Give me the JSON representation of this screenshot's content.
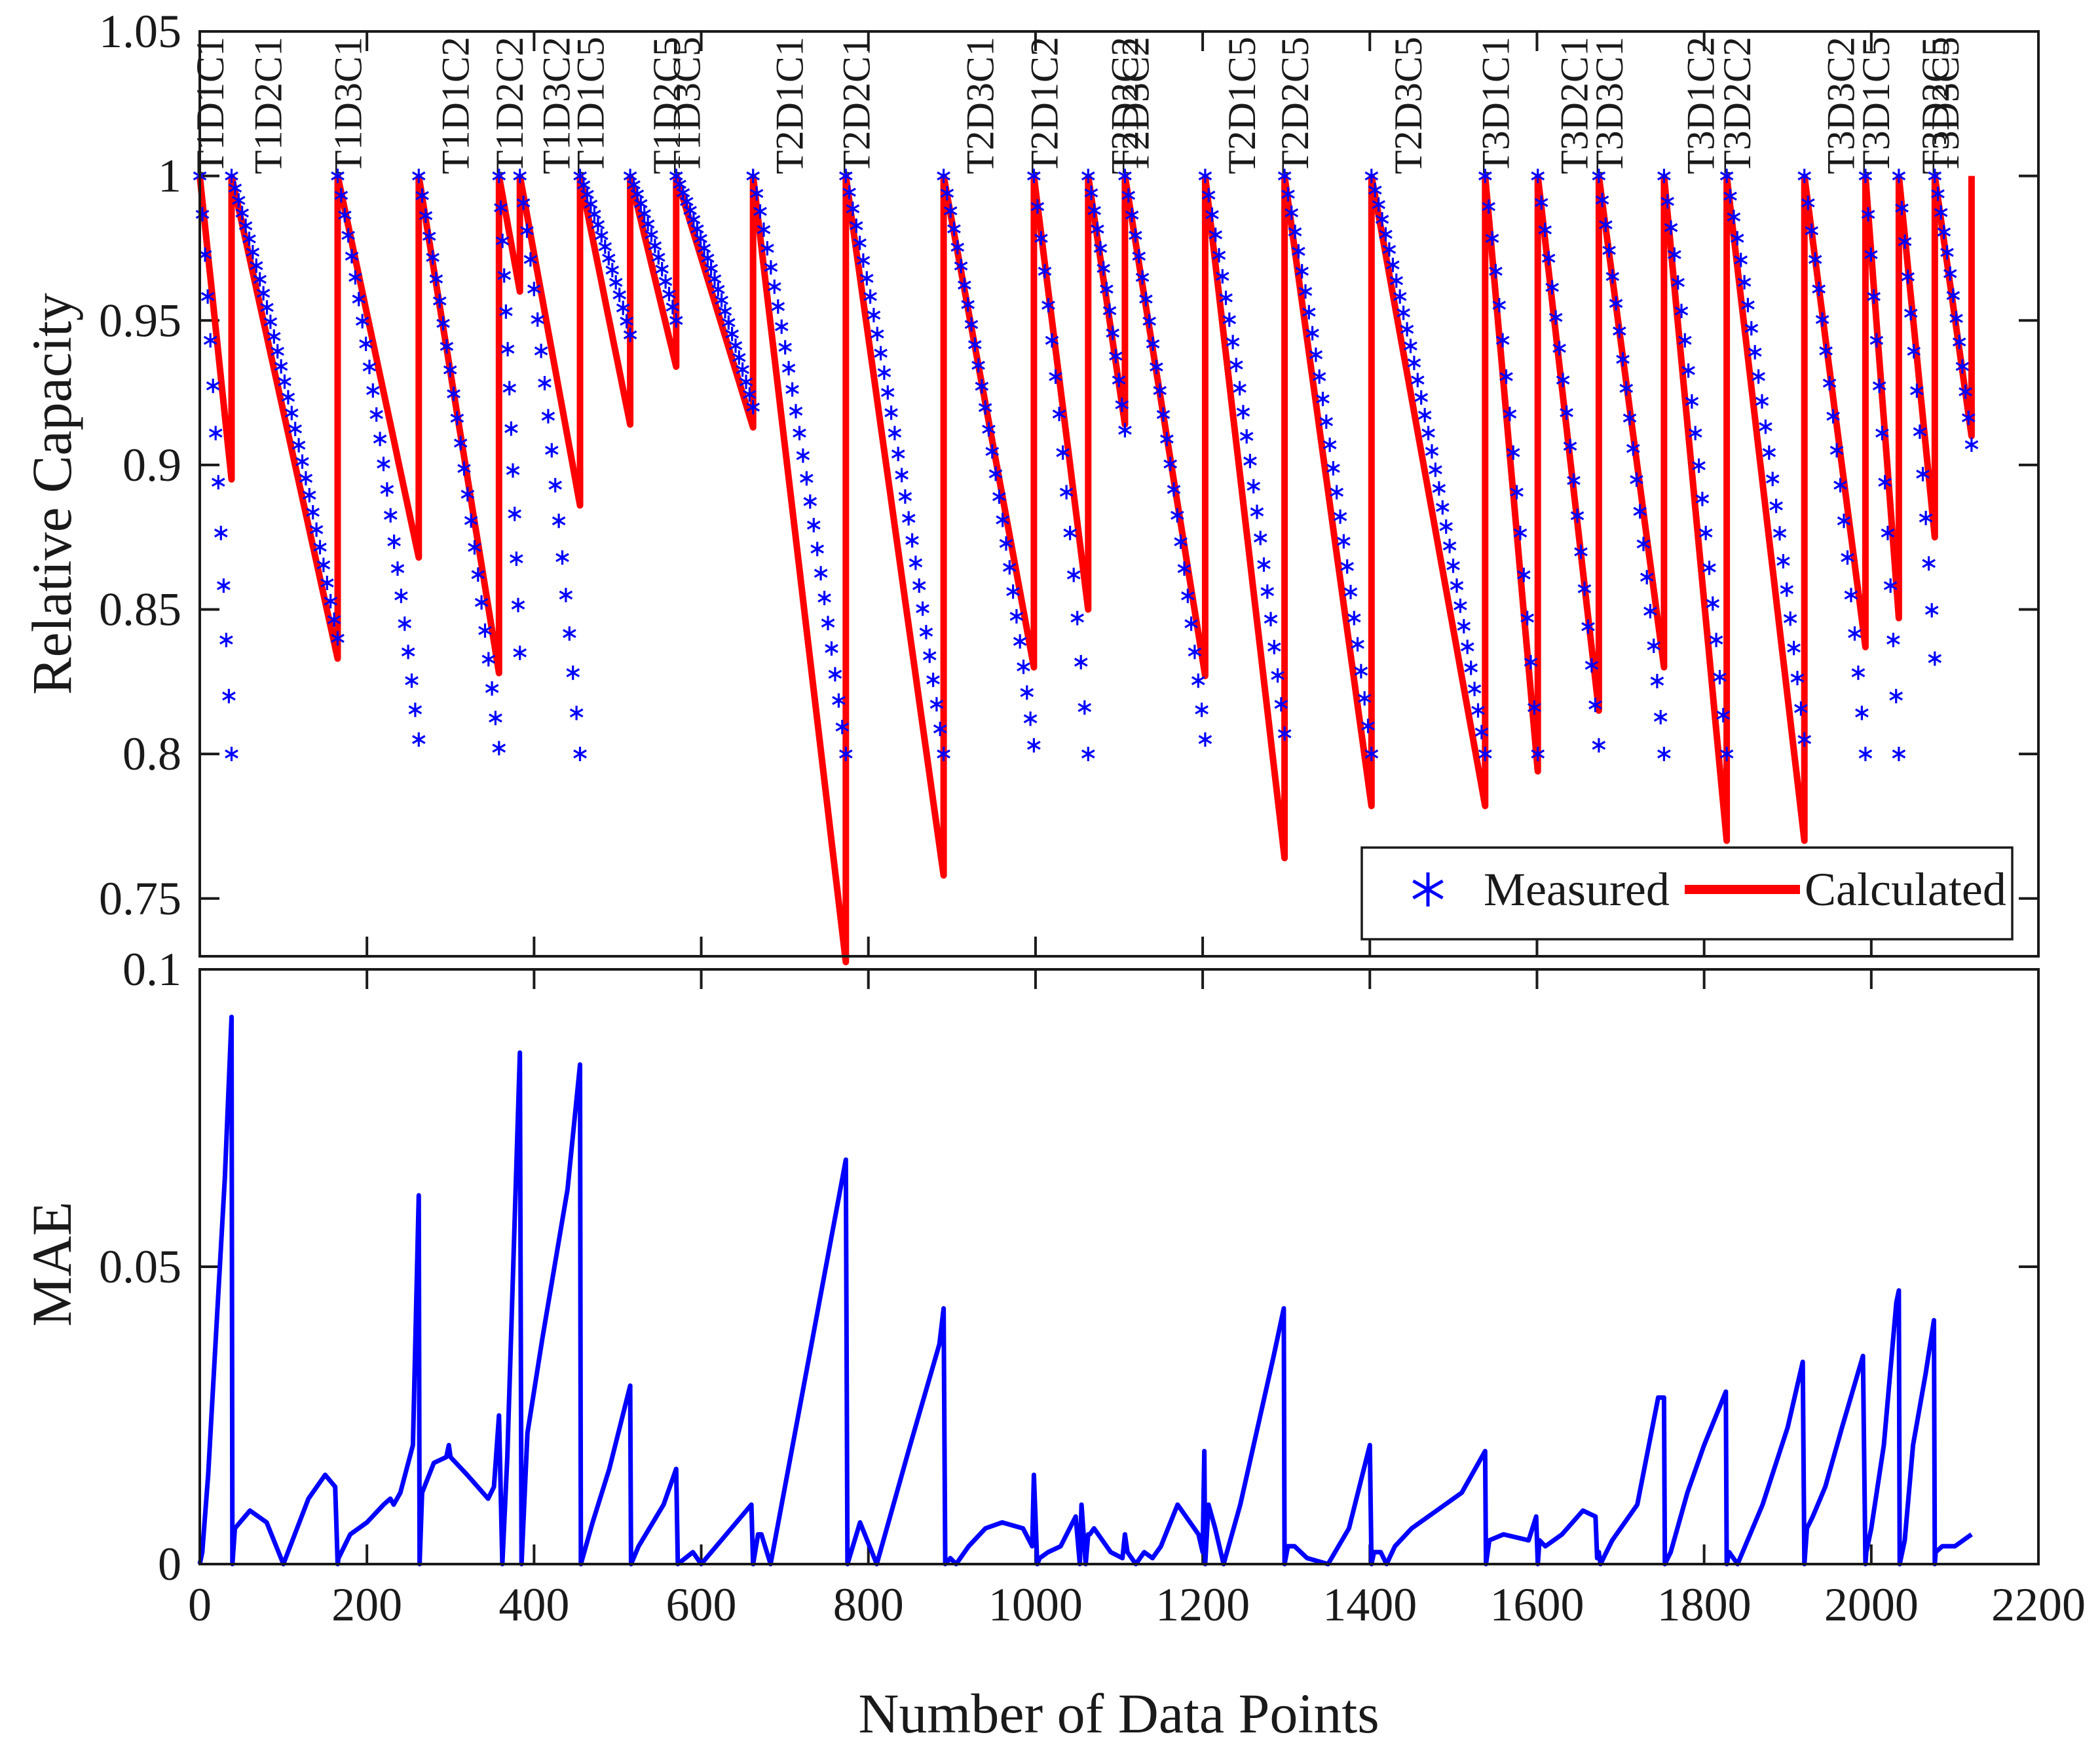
{
  "chart_data": [
    {
      "type": "line",
      "panel": "top",
      "ylabel": "Relative Capacity",
      "xlim": [
        0,
        2200
      ],
      "ylim": [
        0.73,
        1.05
      ],
      "yticks": [
        "1.05",
        "1",
        "0.95",
        "0.9",
        "0.85",
        "0.8",
        "0.75"
      ],
      "ytick_values": [
        1.05,
        1.0,
        0.95,
        0.9,
        0.85,
        0.8,
        0.75
      ],
      "legend": {
        "position": "bottom-right",
        "measured_label": "Measured",
        "calculated_label": "Calculated"
      },
      "colors": {
        "measured": "#0000ff",
        "calculated": "#ff0000"
      },
      "segments": [
        {
          "label": "T1D1C1",
          "start": 0,
          "end": 38,
          "meas_end": 0.8,
          "calc_end": 0.895
        },
        {
          "label": "T1D2C1",
          "start": 38,
          "end": 165,
          "meas_end": 0.84,
          "calc_end": 0.833
        },
        {
          "label": "T1D3C1",
          "start": 165,
          "end": 262,
          "meas_end": 0.805,
          "calc_end": 0.868
        },
        {
          "label": "T1D1C2",
          "start": 262,
          "end": 358,
          "meas_end": 0.802,
          "calc_end": 0.828
        },
        {
          "label": "T1D2C2",
          "start": 358,
          "end": 383,
          "meas_end": 0.835,
          "calc_end": 0.96
        },
        {
          "label": "T1D3C2",
          "start": 383,
          "end": 455,
          "meas_end": 0.8,
          "calc_end": 0.886
        },
        {
          "label": "T1D1C5",
          "start": 455,
          "end": 515,
          "meas_end": 0.945,
          "calc_end": 0.914
        },
        {
          "label": "T1D2C5",
          "start": 515,
          "end": 570,
          "meas_end": 0.95,
          "calc_end": 0.934
        },
        {
          "label": "T1D3C5",
          "start": 570,
          "end": 662,
          "meas_end": 0.92,
          "calc_end": 0.913
        },
        {
          "label": "T2D1C1",
          "start": 662,
          "end": 773,
          "meas_end": 0.8,
          "calc_end": 0.728
        },
        {
          "label": "T2D2C1",
          "start": 773,
          "end": 890,
          "meas_end": 0.8,
          "calc_end": 0.758
        },
        {
          "label": "T2D3C1",
          "start": 890,
          "end": 998,
          "meas_end": 0.803,
          "calc_end": 0.83
        },
        {
          "label": "T2D1C2",
          "start": 998,
          "end": 1063,
          "meas_end": 0.8,
          "calc_end": 0.85
        },
        {
          "label": "T2D2C2",
          "start": 1063,
          "end": 1107,
          "meas_end": 0.912,
          "calc_end": 0.914
        },
        {
          "label": "T2D3C2",
          "start": 1107,
          "end": 1203,
          "meas_end": 0.805,
          "calc_end": 0.827
        },
        {
          "label": "T2D1C5",
          "start": 1203,
          "end": 1298,
          "meas_end": 0.807,
          "calc_end": 0.764
        },
        {
          "label": "T2D2C5",
          "start": 1298,
          "end": 1402,
          "meas_end": 0.8,
          "calc_end": 0.782
        },
        {
          "label": "T2D3C5",
          "start": 1402,
          "end": 1538,
          "meas_end": 0.8,
          "calc_end": 0.782
        },
        {
          "label": "T3D1C1",
          "start": 1538,
          "end": 1601,
          "meas_end": 0.8,
          "calc_end": 0.794
        },
        {
          "label": "T3D2C1",
          "start": 1601,
          "end": 1674,
          "meas_end": 0.803,
          "calc_end": 0.815
        },
        {
          "label": "T3D3C1",
          "start": 1674,
          "end": 1752,
          "meas_end": 0.8,
          "calc_end": 0.83
        },
        {
          "label": "T3D1C2",
          "start": 1752,
          "end": 1827,
          "meas_end": 0.8,
          "calc_end": 0.77
        },
        {
          "label": "T3D2C2",
          "start": 1827,
          "end": 1920,
          "meas_end": 0.805,
          "calc_end": 0.77
        },
        {
          "label": "T3D3C2",
          "start": 1920,
          "end": 1993,
          "meas_end": 0.8,
          "calc_end": 0.837
        },
        {
          "label": "T3D1C5",
          "start": 1993,
          "end": 2033,
          "meas_end": 0.8,
          "calc_end": 0.847
        },
        {
          "label": "T3D2C5",
          "start": 2033,
          "end": 2076,
          "meas_end": 0.833,
          "calc_end": 0.875
        },
        {
          "label": "T3D3C5",
          "start": 2076,
          "end": 2120,
          "meas_end": 0.907,
          "calc_end": 0.91
        }
      ]
    },
    {
      "type": "line",
      "panel": "bottom",
      "xlabel": "Number of Data Points",
      "ylabel": "MAE",
      "xlim": [
        0,
        2200
      ],
      "ylim": [
        0,
        0.1
      ],
      "xticks": [
        "0",
        "200",
        "400",
        "600",
        "800",
        "1000",
        "1200",
        "1400",
        "1600",
        "1800",
        "2000",
        "2200"
      ],
      "xtick_values": [
        0,
        200,
        400,
        600,
        800,
        1000,
        1200,
        1400,
        1600,
        1800,
        2000,
        2200
      ],
      "yticks": [
        "0.1",
        "0.05",
        "0"
      ],
      "ytick_values": [
        0.1,
        0.05,
        0
      ],
      "color": "#0000ff",
      "x": [
        0,
        3,
        10,
        20,
        30,
        38,
        39,
        42,
        60,
        80,
        100,
        130,
        150,
        162,
        165,
        166,
        180,
        200,
        220,
        228,
        232,
        240,
        255,
        262,
        263,
        266,
        280,
        295,
        298,
        300,
        320,
        345,
        352,
        358,
        362,
        368,
        383,
        385,
        392,
        410,
        440,
        455,
        456,
        470,
        490,
        515,
        516,
        525,
        555,
        570,
        572,
        590,
        600,
        630,
        660,
        662,
        668,
        672,
        683,
        773,
        775,
        790,
        810,
        850,
        885,
        890,
        892,
        898,
        905,
        920,
        940,
        960,
        985,
        996,
        998,
        1002,
        1005,
        1015,
        1030,
        1048,
        1053,
        1055,
        1060,
        1063,
        1065,
        1070,
        1090,
        1104,
        1107,
        1110,
        1120,
        1130,
        1140,
        1150,
        1170,
        1195,
        1200,
        1202,
        1203,
        1207,
        1215,
        1225,
        1245,
        1285,
        1297,
        1298,
        1302,
        1310,
        1325,
        1350,
        1375,
        1400,
        1402,
        1405,
        1413,
        1420,
        1430,
        1450,
        1480,
        1510,
        1538,
        1539,
        1543,
        1560,
        1590,
        1599,
        1601,
        1603,
        1610,
        1630,
        1655,
        1670,
        1672,
        1674,
        1676,
        1690,
        1720,
        1745,
        1752,
        1753,
        1760,
        1780,
        1800,
        1826,
        1827,
        1830,
        1840,
        1870,
        1900,
        1918,
        1920,
        1923,
        1930,
        1945,
        1965,
        1990,
        1993,
        1994,
        2000,
        2015,
        2030,
        2033,
        2034,
        2040,
        2050,
        2065,
        2075,
        2076,
        2077,
        2085,
        2100,
        2110,
        2120
      ],
      "y": [
        0,
        0.002,
        0.015,
        0.04,
        0.065,
        0.092,
        0,
        0.006,
        0.009,
        0.007,
        0,
        0.011,
        0.015,
        0.013,
        0,
        0.001,
        0.005,
        0.007,
        0.01,
        0.011,
        0.01,
        0.012,
        0.02,
        0.062,
        0,
        0.012,
        0.017,
        0.018,
        0.02,
        0.018,
        0.015,
        0.011,
        0.013,
        0.025,
        0,
        0.018,
        0.086,
        0,
        0.022,
        0.038,
        0.063,
        0.084,
        0,
        0.007,
        0.016,
        0.03,
        0,
        0.003,
        0.01,
        0.016,
        0,
        0.002,
        0,
        0.005,
        0.01,
        0,
        0.005,
        0.005,
        0,
        0.068,
        0,
        0.007,
        0,
        0.02,
        0.037,
        0.043,
        0,
        0.001,
        0,
        0.003,
        0.006,
        0.007,
        0.006,
        0.003,
        0.015,
        0,
        0.001,
        0.002,
        0.003,
        0.008,
        0,
        0.01,
        0,
        0.005,
        0.005,
        0.006,
        0.002,
        0.001,
        0.005,
        0.002,
        0,
        0.002,
        0.001,
        0.003,
        0.01,
        0.005,
        0.002,
        0.019,
        0,
        0.01,
        0.006,
        0,
        0.01,
        0.035,
        0.043,
        0,
        0.003,
        0.003,
        0.001,
        0,
        0.006,
        0.02,
        0,
        0.002,
        0.002,
        0,
        0.003,
        0.006,
        0.009,
        0.012,
        0.019,
        0,
        0.004,
        0.005,
        0.004,
        0.008,
        0,
        0.004,
        0.003,
        0.005,
        0.009,
        0.008,
        0.001,
        0.002,
        0,
        0.004,
        0.01,
        0.028,
        0.028,
        0,
        0.002,
        0.012,
        0.02,
        0.029,
        0,
        0.002,
        0,
        0.01,
        0.023,
        0.034,
        0,
        0.006,
        0.008,
        0.013,
        0.023,
        0.035,
        0,
        0.002,
        0.006,
        0.02,
        0.044,
        0.046,
        0,
        0.004,
        0.02,
        0.032,
        0.041,
        0,
        0.002,
        0.003,
        0.003,
        0.004,
        0.005
      ]
    }
  ]
}
